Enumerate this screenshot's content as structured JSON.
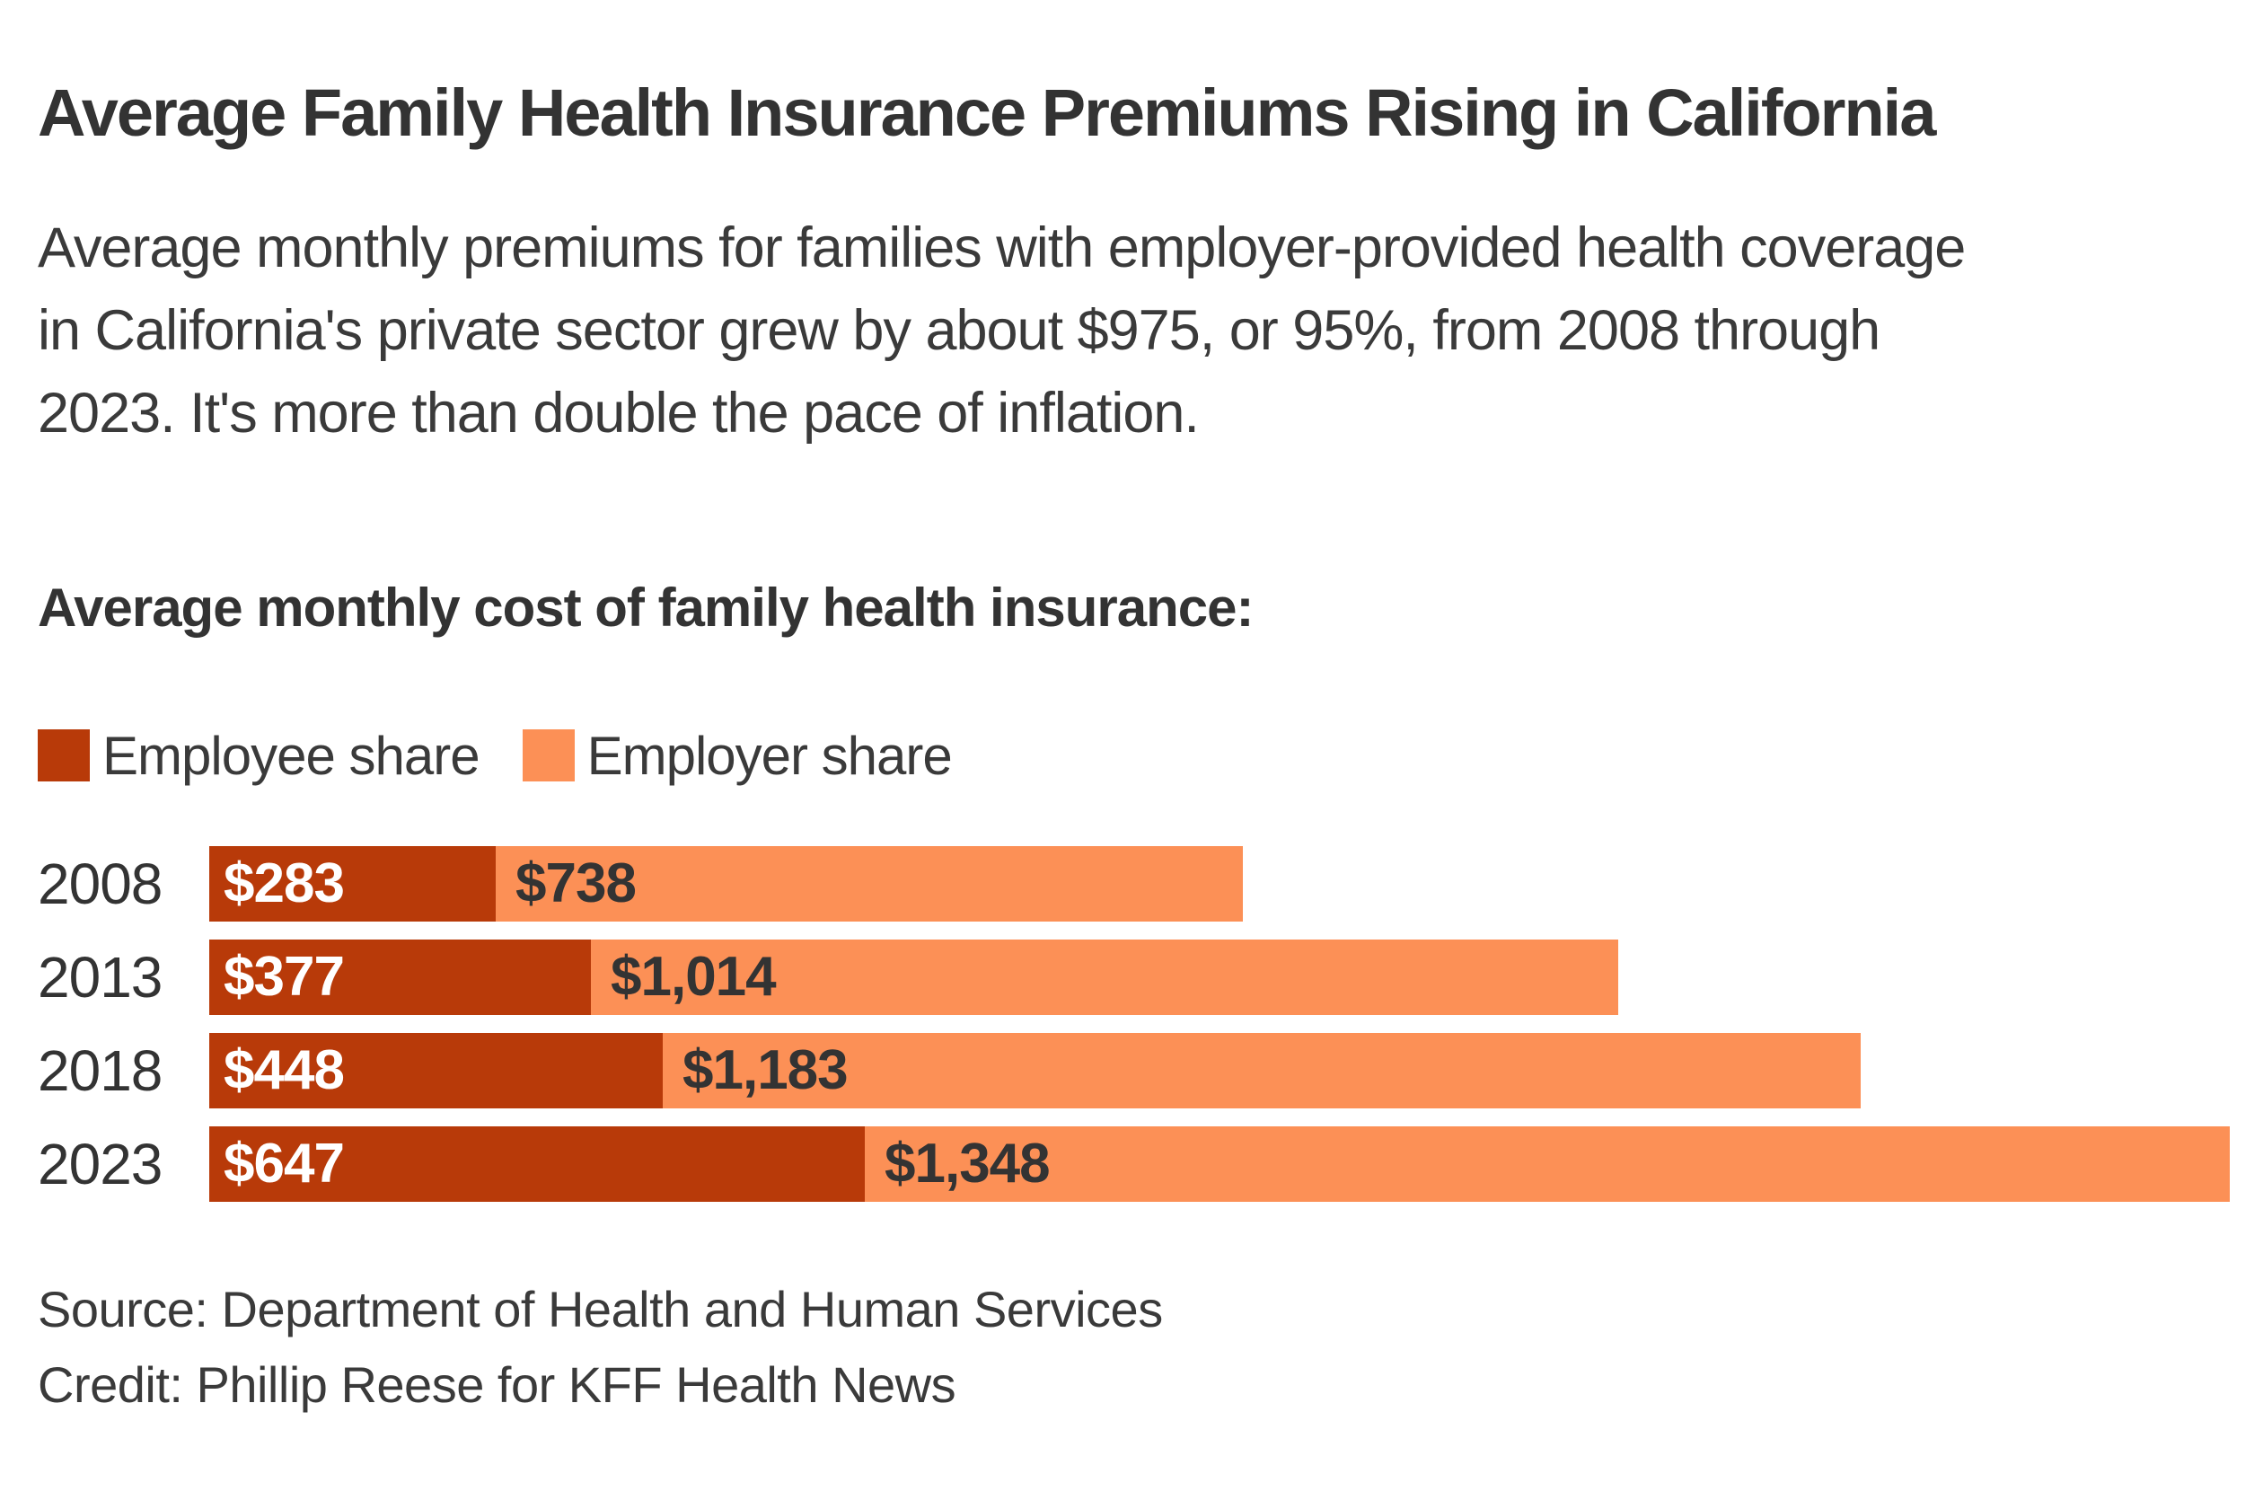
{
  "title": "Average Family Health Insurance Premiums Rising in California",
  "subtitle": {
    "lines": [
      "Average monthly premiums for families with employer-provided health coverage",
      "in California's private sector grew by about $975, or 95%, from 2008 through",
      "2023. It's more than double the pace of inflation."
    ]
  },
  "section_heading": "Average monthly cost of family health insurance:",
  "colors": {
    "employee_share": "#B83A09",
    "employer_share": "#FC9056",
    "text_dark": "#333333"
  },
  "legend": [
    {
      "label": "Employee share",
      "color": "#B83A09"
    },
    {
      "label": "Employer share",
      "color": "#FC9056"
    }
  ],
  "chart_data": {
    "type": "bar",
    "orientation": "horizontal",
    "stacked": true,
    "title": "Average monthly cost of family health insurance:",
    "categories": [
      "2008",
      "2013",
      "2018",
      "2023"
    ],
    "series": [
      {
        "name": "Employee share",
        "color": "#B83A09",
        "values": [
          283,
          377,
          448,
          647
        ],
        "labels": [
          "$283",
          "$377",
          "$448",
          "$647"
        ]
      },
      {
        "name": "Employer share",
        "color": "#FC9056",
        "values": [
          738,
          1014,
          1183,
          1348
        ],
        "labels": [
          "$738",
          "$1,014",
          "$1,183",
          "$1,348"
        ]
      }
    ],
    "totals": [
      1021,
      1391,
      1631,
      1995
    ],
    "axis": "none",
    "grid": false,
    "legend_position": "top",
    "value_labels": "inside-start",
    "pixels_per_dollar": 1.1278
  },
  "footer": {
    "source": "Source: Department of Health and Human Services",
    "credit": "Credit: Phillip Reese for KFF Health News"
  }
}
